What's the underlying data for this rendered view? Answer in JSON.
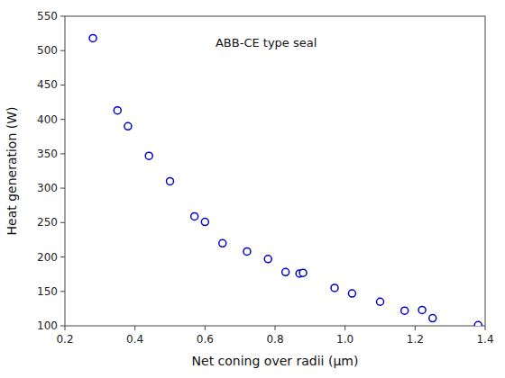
{
  "chart_data": {
    "type": "scatter",
    "x": [
      0.28,
      0.35,
      0.38,
      0.44,
      0.5,
      0.57,
      0.6,
      0.65,
      0.72,
      0.78,
      0.83,
      0.87,
      0.88,
      0.97,
      1.02,
      1.1,
      1.17,
      1.22,
      1.25,
      1.38
    ],
    "values": [
      518,
      413,
      390,
      347,
      310,
      259,
      251,
      220,
      208,
      197,
      178,
      176,
      177,
      155,
      147,
      135,
      122,
      123,
      111,
      101
    ],
    "xlabel": "Net coning over radii (μm)",
    "ylabel": "Heat generation (W)",
    "annotations": [
      {
        "text": "ABB-CE type seal",
        "x": 0.63,
        "y": 505
      }
    ],
    "xlim": [
      0.2,
      1.4
    ],
    "ylim": [
      100,
      550
    ],
    "xticks": [
      0.2,
      0.4,
      0.6,
      0.8,
      {
        "value": 1.0,
        "label": "1.0"
      },
      1.2,
      1.4
    ],
    "yticks": [
      100,
      150,
      200,
      250,
      300,
      350,
      400,
      450,
      500,
      550
    ],
    "color": "#0000CC",
    "marker": "open-circle"
  }
}
